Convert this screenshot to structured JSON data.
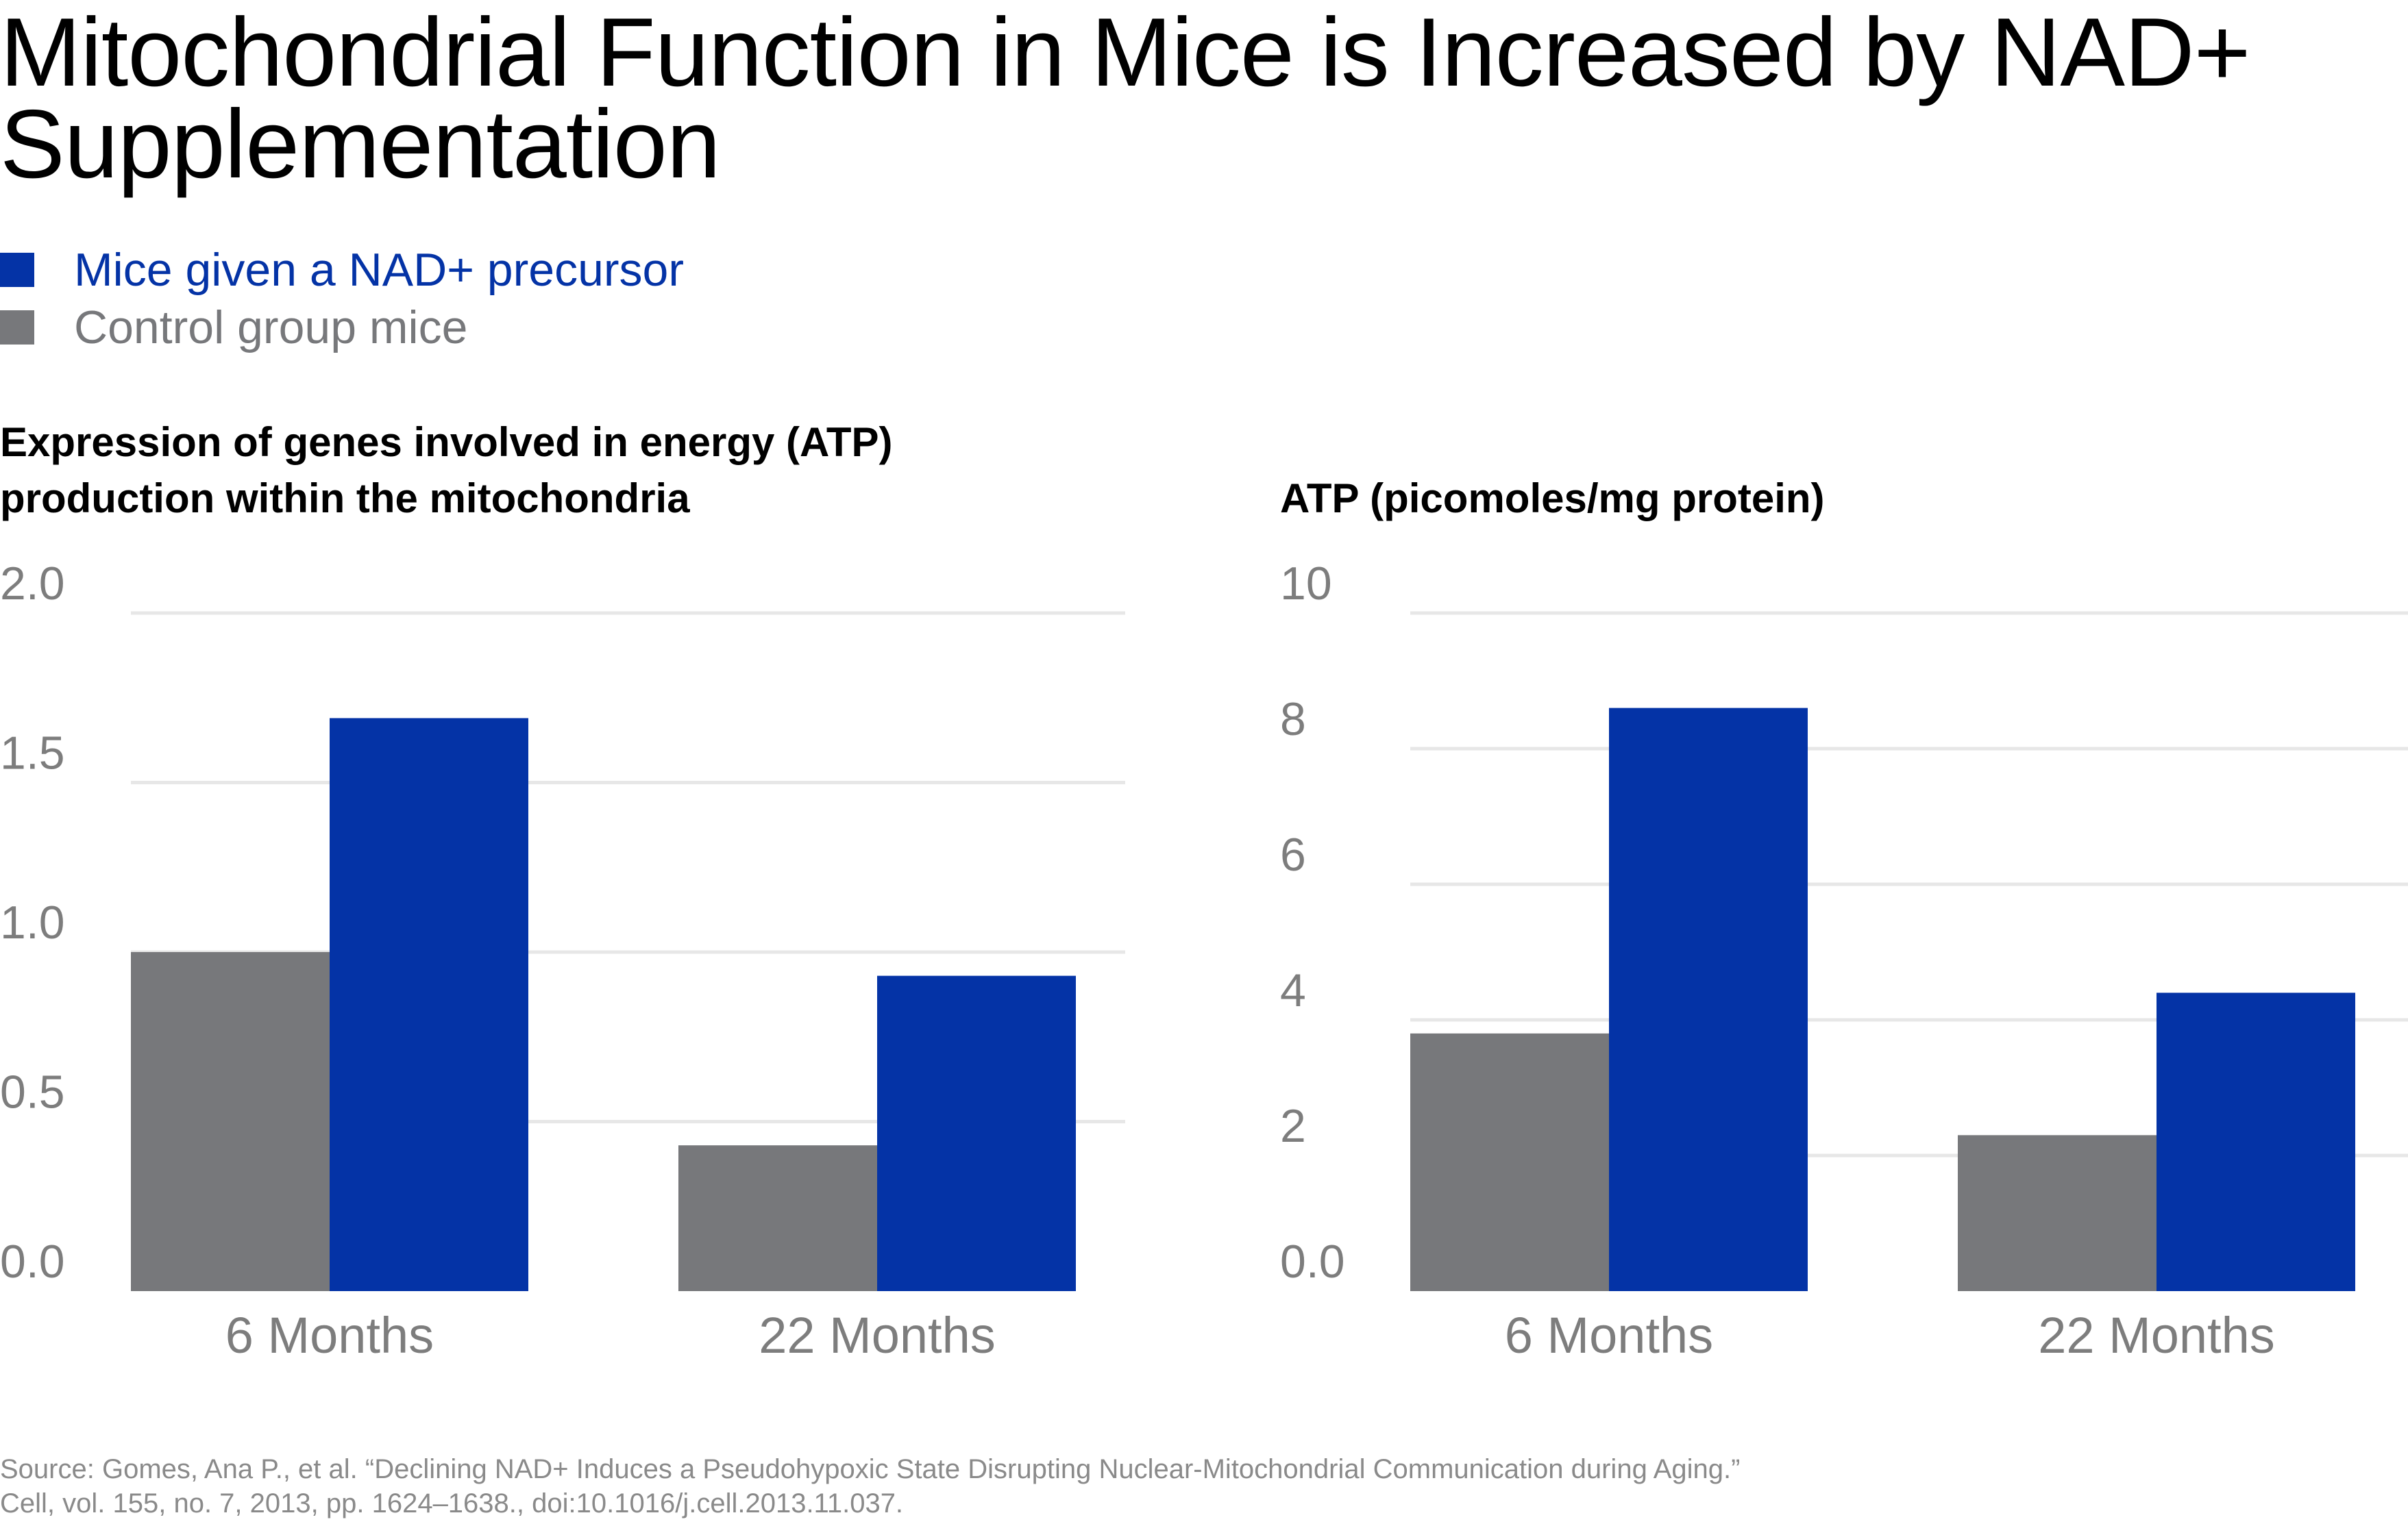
{
  "title": "Mitochondrial Function in Mice is Increased by NAD+ Supplementation",
  "colors": {
    "treated": "#0433a6",
    "control": "#77787b",
    "grid": "#e7e7e7",
    "tick": "#7d7d7d"
  },
  "legend": [
    {
      "label": "Mice given a NAD+ precursor",
      "color": "#0433a6"
    },
    {
      "label": "Control group mice",
      "color": "#77787b"
    }
  ],
  "source": {
    "line1": "Source: Gomes, Ana P., et al. “Declining NAD+ Induces a Pseudohypoxic State Disrupting Nuclear-Mitochondrial Communication during Aging.”",
    "line2": "Cell, vol. 155, no. 7, 2013, pp. 1624–1638., doi:10.1016/j.cell.2013.11.037."
  },
  "chart_data": [
    {
      "type": "bar",
      "title": "Expression of genes involved in energy (ATP) production within the mitochondria",
      "title_line1": "Expression of genes involved in energy (ATP)",
      "title_line2": "production within the mitochondria",
      "categories": [
        "6 Months",
        "22 Months"
      ],
      "series": [
        {
          "name": "Control group mice",
          "values": [
            1.0,
            0.43
          ]
        },
        {
          "name": "Mice given a NAD+ precursor",
          "values": [
            1.69,
            0.93
          ]
        }
      ],
      "ylim": [
        0,
        2.0
      ],
      "yticks": [
        0.0,
        0.5,
        1.0,
        1.5,
        2.0
      ],
      "ytick_labels": [
        "0.0",
        "0.5",
        "1.0",
        "1.5",
        "2.0"
      ],
      "grid": true
    },
    {
      "type": "bar",
      "title": "ATP (picomoles/mg protein)",
      "title_line1": "ATP (picomoles/mg protein)",
      "categories": [
        "6 Months",
        "22 Months"
      ],
      "series": [
        {
          "name": "Control group mice",
          "values": [
            3.8,
            2.3
          ]
        },
        {
          "name": "Mice given a NAD+ precursor",
          "values": [
            8.6,
            4.4
          ]
        }
      ],
      "ylim": [
        0,
        10
      ],
      "yticks": [
        0,
        2,
        4,
        6,
        8,
        10
      ],
      "ytick_labels": [
        "0.0",
        "2",
        "4",
        "6",
        "8",
        "10"
      ],
      "grid": true
    }
  ]
}
